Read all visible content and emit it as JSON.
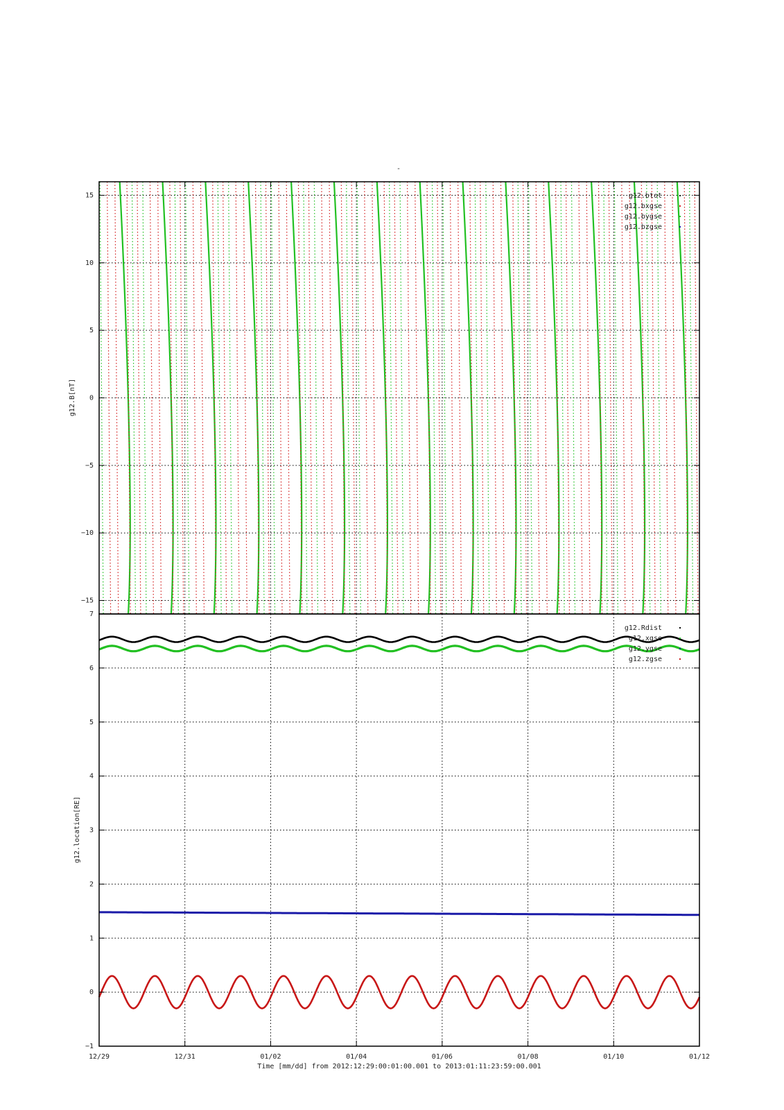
{
  "figure": {
    "title": "-",
    "time_label": "Time [mm/dd]  from 2012:12:29:00:01:00.001  to  2013:01:11:23:59:00.001"
  },
  "chart_data": [
    {
      "type": "line",
      "ylabel": "g12.B[nT]",
      "ylim": [
        -16,
        16
      ],
      "yticks": [
        -15,
        -10,
        -5,
        0,
        5,
        10,
        15
      ],
      "xlim": [
        0,
        14
      ],
      "xticks": [
        "12/29",
        "12/31",
        "01/02",
        "01/04",
        "01/06",
        "01/08",
        "01/10",
        "01/12"
      ],
      "grid": true,
      "legend_position": "top-right",
      "series": [
        {
          "name": "g12.btot",
          "color": "#000000",
          "style": "dots",
          "values": []
        },
        {
          "name": "g12.bxgse",
          "color": "#d42020",
          "style": "dots",
          "values": []
        },
        {
          "name": "g12.bygse",
          "color": "#22c022",
          "style": "dots",
          "crossings_per_day": 1.0,
          "pattern": "steep descending sweeps through full y-range"
        },
        {
          "name": "g12.bzgse",
          "color": "#1a1aa8",
          "style": "dots",
          "values": []
        }
      ],
      "notes": "Traces are near-vertical lines repeatedly crossing the axis range; green solid sweeps ~1/day, red and green dotted sweeps in between."
    },
    {
      "type": "line",
      "ylabel": "g12.location[RE]",
      "ylim": [
        -1,
        7
      ],
      "yticks": [
        -1,
        0,
        1,
        2,
        3,
        4,
        5,
        6,
        7
      ],
      "xlim": [
        0,
        14
      ],
      "xticks": [
        "12/29",
        "12/31",
        "01/02",
        "01/04",
        "01/06",
        "01/08",
        "01/10",
        "01/12"
      ],
      "grid": true,
      "legend_position": "top-right",
      "series": [
        {
          "name": "g12.Rdist",
          "color": "#000000",
          "mean": 6.53,
          "amplitude": 0.05,
          "period_days": 1.0
        },
        {
          "name": "g12.xgse",
          "color": "#22c022",
          "mean": 6.36,
          "amplitude": 0.05,
          "period_days": 1.0
        },
        {
          "name": "g12.ygse",
          "color": "#1a1aa8",
          "start": 1.48,
          "end": 1.43
        },
        {
          "name": "g12.zgse",
          "color": "#c81818",
          "mean": 0.0,
          "amplitude": 0.3,
          "period_days": 1.0
        }
      ]
    }
  ]
}
